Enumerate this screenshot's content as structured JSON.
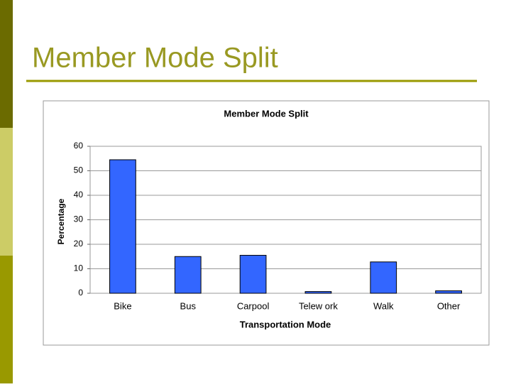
{
  "slide": {
    "title": "Member Mode Split"
  },
  "chart_data": {
    "type": "bar",
    "title": "Member Mode Split",
    "x_label": "Transportation Mode",
    "y_label": "Percentage",
    "categories": [
      "Bike",
      "Bus",
      "Carpool",
      "Telew ork",
      "Walk",
      "Other"
    ],
    "values": [
      54.5,
      15,
      15.5,
      0.7,
      12.8,
      1
    ],
    "color": "#3366ff",
    "ylim": [
      0,
      60
    ],
    "yticks": [
      0,
      10,
      20,
      30,
      40,
      50,
      60
    ],
    "grid": true
  }
}
